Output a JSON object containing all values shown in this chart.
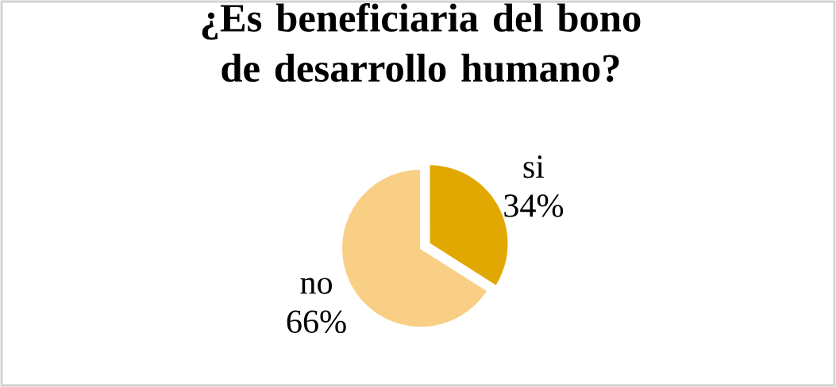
{
  "chart_data": {
    "type": "pie",
    "title": "¿Es beneficiaria del bono de desarrollo humano?",
    "categories": [
      "si",
      "no"
    ],
    "values": [
      34,
      66
    ],
    "colors": [
      "#e0a800",
      "#f9cf86"
    ],
    "value_labels": [
      "34%",
      "66%"
    ]
  }
}
